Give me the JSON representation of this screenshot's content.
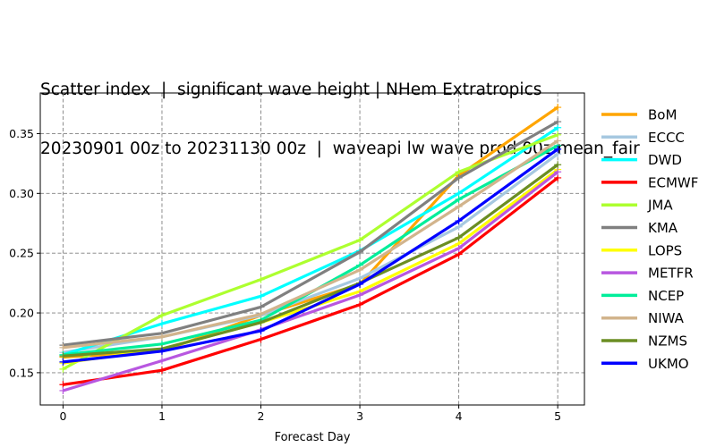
{
  "title_lines": [
    "Scatter index  |  significant wave height | NHem Extratropics",
    "20230901 00z to 20231130 00z  |  waveapi lw wave prod 00z mean_fair"
  ],
  "chart_data": {
    "type": "line",
    "title": "Scatter index  |  significant wave height | NHem Extratropics 20230901 00z to 20231130 00z  |  waveapi lw wave prod 00z mean_fair",
    "xlabel": "Forecast Day",
    "ylabel": "",
    "x": [
      0,
      1,
      2,
      3,
      4,
      5
    ],
    "xlim": [
      -0.23,
      5.27
    ],
    "ylim": [
      0.123,
      0.384
    ],
    "xticks": [
      0,
      1,
      2,
      3,
      4,
      5
    ],
    "yticks": [
      0.15,
      0.2,
      0.25,
      0.3,
      0.35
    ],
    "ytick_labels": [
      "0.15",
      "0.20",
      "0.25",
      "0.30",
      "0.35"
    ],
    "grid": true,
    "legend_position": "right",
    "series": [
      {
        "name": "BoM",
        "color": "#ffa500",
        "values": [
          0.163,
          0.168,
          0.198,
          0.224,
          0.315,
          0.372
        ]
      },
      {
        "name": "ECCC",
        "color": "#a6c8e0",
        "values": [
          0.167,
          0.18,
          0.198,
          0.229,
          0.272,
          0.333
        ]
      },
      {
        "name": "DWD",
        "color": "#00ffff",
        "values": [
          0.165,
          0.191,
          0.214,
          0.252,
          0.3,
          0.355
        ]
      },
      {
        "name": "ECMWF",
        "color": "#ff0000",
        "values": [
          0.14,
          0.152,
          0.178,
          0.207,
          0.249,
          0.313
        ]
      },
      {
        "name": "JMA",
        "color": "#adff2f",
        "values": [
          0.153,
          0.198,
          0.228,
          0.261,
          0.318,
          0.349
        ]
      },
      {
        "name": "KMA",
        "color": "#808080",
        "values": [
          0.173,
          0.183,
          0.205,
          0.251,
          0.313,
          0.36
        ]
      },
      {
        "name": "LOPS",
        "color": "#ffff00",
        "values": [
          0.158,
          0.17,
          0.192,
          0.218,
          0.258,
          0.32
        ]
      },
      {
        "name": "METFR",
        "color": "#b857e0",
        "values": [
          0.135,
          0.16,
          0.186,
          0.215,
          0.254,
          0.318
        ]
      },
      {
        "name": "NCEP",
        "color": "#00ee9a",
        "values": [
          0.165,
          0.174,
          0.194,
          0.24,
          0.295,
          0.34
        ]
      },
      {
        "name": "NIWA",
        "color": "#d2b48c",
        "values": [
          0.171,
          0.18,
          0.199,
          0.236,
          0.289,
          0.344
        ]
      },
      {
        "name": "NZMS",
        "color": "#6b8e23",
        "values": [
          0.164,
          0.17,
          0.192,
          0.225,
          0.263,
          0.324
        ]
      },
      {
        "name": "UKMO",
        "color": "#0000ff",
        "values": [
          0.159,
          0.168,
          0.185,
          0.224,
          0.277,
          0.337
        ]
      }
    ]
  }
}
